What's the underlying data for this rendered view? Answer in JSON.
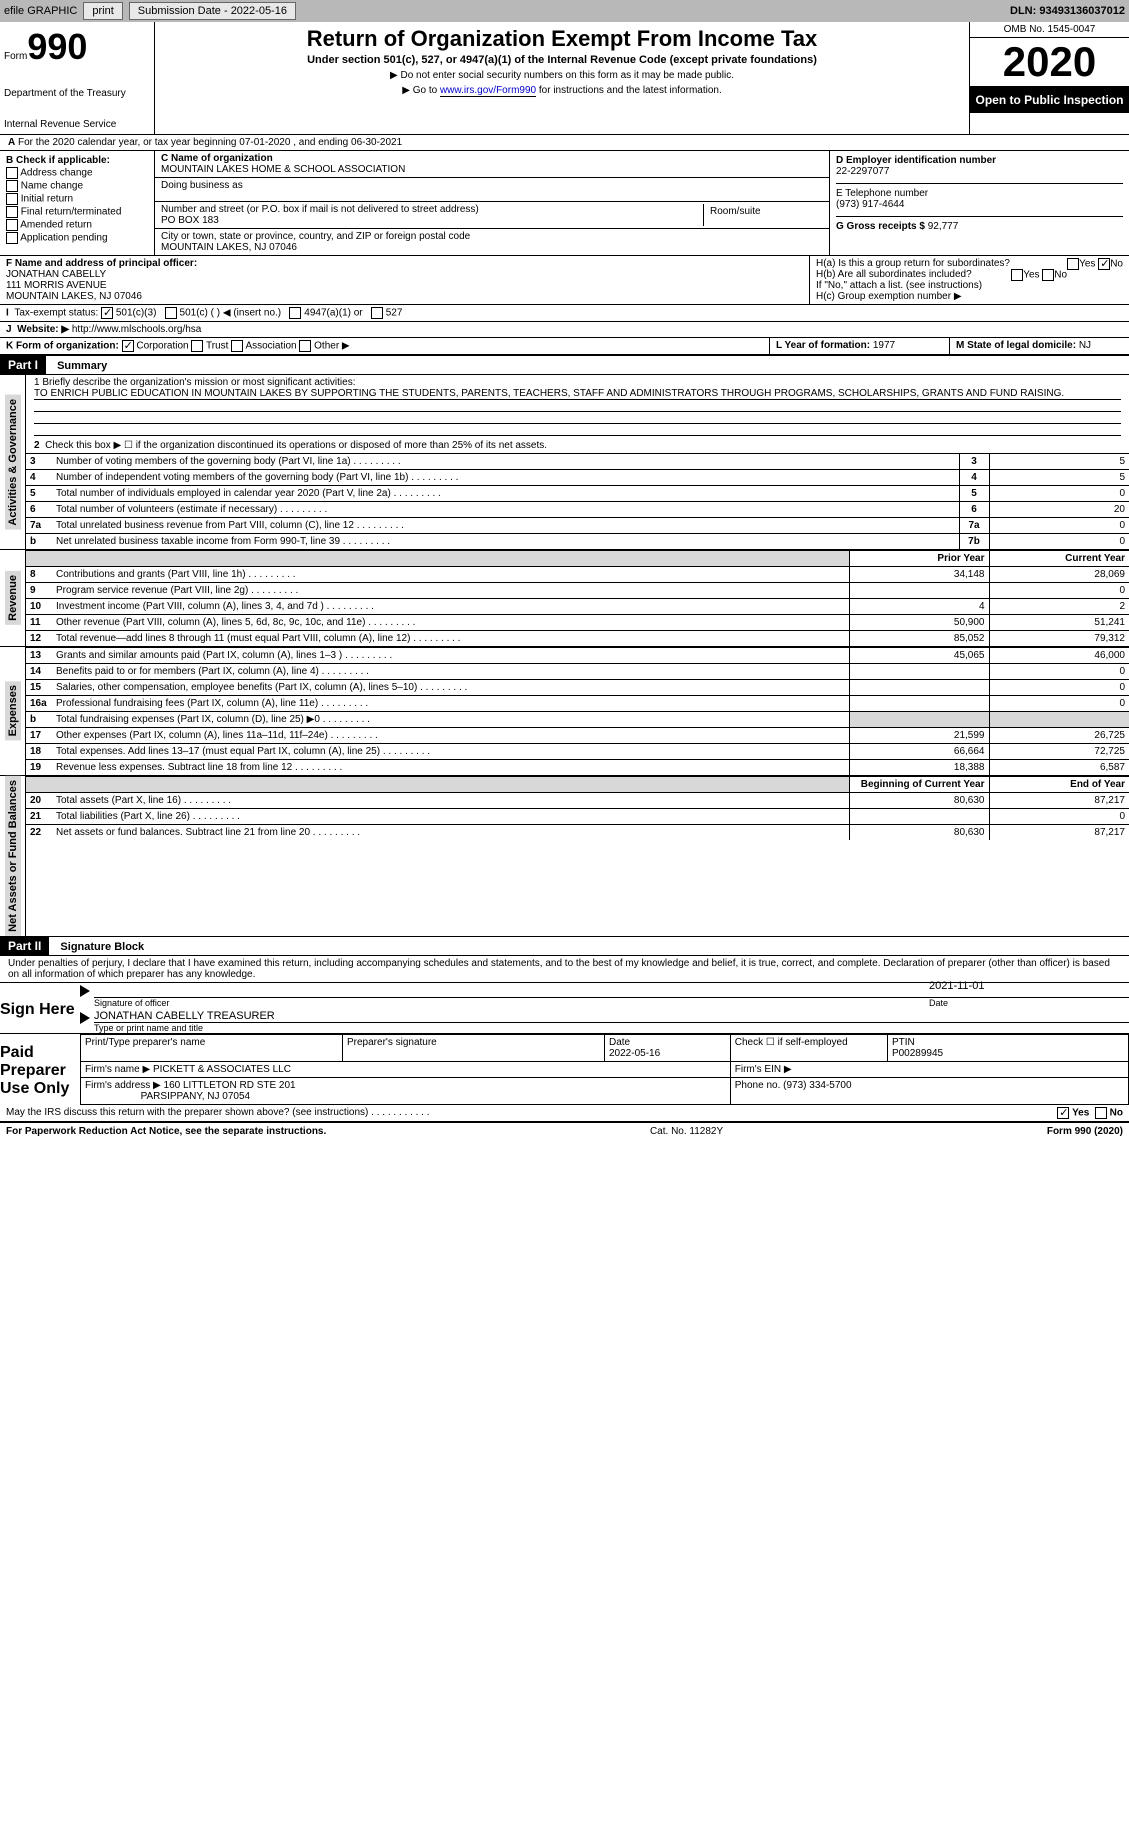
{
  "topbar": {
    "efile_label": "efile GRAPHIC",
    "print_btn": "print",
    "sub_date_label": "Submission Date - 2022-05-16",
    "dln_label": "DLN: 93493136037012"
  },
  "header": {
    "form_word": "Form",
    "form_num": "990",
    "dept1": "Department of the Treasury",
    "dept2": "Internal Revenue Service",
    "title": "Return of Organization Exempt From Income Tax",
    "subtitle": "Under section 501(c), 527, or 4947(a)(1) of the Internal Revenue Code (except private foundations)",
    "instr1": "▶ Do not enter social security numbers on this form as it may be made public.",
    "instr2_pre": "▶ Go to ",
    "instr2_link": "www.irs.gov/Form990",
    "instr2_post": " for instructions and the latest information.",
    "omb": "OMB No. 1545-0047",
    "year": "2020",
    "open_pub": "Open to Public Inspection"
  },
  "lineA": "For the 2020 calendar year, or tax year beginning 07-01-2020    , and ending 06-30-2021",
  "boxB": {
    "title": "B Check if applicable:",
    "addr": "Address change",
    "name": "Name change",
    "init": "Initial return",
    "final": "Final return/terminated",
    "amend": "Amended return",
    "app": "Application pending"
  },
  "boxC": {
    "label_name": "C Name of organization",
    "org_name": "MOUNTAIN LAKES HOME & SCHOOL ASSOCIATION",
    "dba_label": "Doing business as",
    "street_label": "Number and street (or P.O. box if mail is not delivered to street address)",
    "street": "PO BOX 183",
    "room_label": "Room/suite",
    "city_label": "City or town, state or province, country, and ZIP or foreign postal code",
    "city": "MOUNTAIN LAKES, NJ  07046"
  },
  "boxD": {
    "ein_label": "D Employer identification number",
    "ein": "22-2297077",
    "phone_label": "E Telephone number",
    "phone": "(973) 917-4644",
    "receipts_label": "G Gross receipts $",
    "receipts": "92,777"
  },
  "boxF": {
    "label": "F  Name and address of principal officer:",
    "name": "JONATHAN CABELLY",
    "addr1": "111 MORRIS AVENUE",
    "addr2": "MOUNTAIN LAKES, NJ  07046"
  },
  "boxH": {
    "ha_label": "H(a)  Is this a group return for subordinates?",
    "hb_label": "H(b)  Are all subordinates included?",
    "h_note": "If \"No,\" attach a list. (see instructions)",
    "hc_label": "H(c)  Group exemption number ▶",
    "yes": "Yes",
    "no": "No"
  },
  "taxExempt": {
    "label": "Tax-exempt status:",
    "c3": "501(c)(3)",
    "c_other": "501(c) (  ) ◀ (insert no.)",
    "a1": "4947(a)(1) or",
    "s527": "527"
  },
  "lineJ": {
    "label": "Website: ▶",
    "url": "http://www.mlschools.org/hsa"
  },
  "lineK": {
    "label": "K Form of organization:",
    "corp": "Corporation",
    "trust": "Trust",
    "assoc": "Association",
    "other": "Other ▶"
  },
  "lineLM": {
    "l_label": "L Year of formation:",
    "l_val": "1977",
    "m_label": "M State of legal domicile:",
    "m_val": "NJ"
  },
  "part1": {
    "hdr": "Part I",
    "title": "Summary",
    "mission_label": "1  Briefly describe the organization's mission or most significant activities:",
    "mission": "TO ENRICH PUBLIC EDUCATION IN MOUNTAIN LAKES BY SUPPORTING THE STUDENTS, PARENTS, TEACHERS, STAFF AND ADMINISTRATORS THROUGH PROGRAMS, SCHOLARSHIPS, GRANTS AND FUND RAISING.",
    "line2": "Check this box ▶ ☐ if the organization discontinued its operations or disposed of more than 25% of its net assets.",
    "vtab_gov": "Activities & Governance",
    "vtab_rev": "Revenue",
    "vtab_exp": "Expenses",
    "vtab_net": "Net Assets or Fund Balances",
    "hdr_prior": "Prior Year",
    "hdr_curr": "Current Year",
    "hdr_beg": "Beginning of Current Year",
    "hdr_end": "End of Year"
  },
  "govRows": [
    {
      "n": "3",
      "txt": "Number of voting members of the governing body (Part VI, line 1a)",
      "idx": "3",
      "v": "5"
    },
    {
      "n": "4",
      "txt": "Number of independent voting members of the governing body (Part VI, line 1b)",
      "idx": "4",
      "v": "5"
    },
    {
      "n": "5",
      "txt": "Total number of individuals employed in calendar year 2020 (Part V, line 2a)",
      "idx": "5",
      "v": "0"
    },
    {
      "n": "6",
      "txt": "Total number of volunteers (estimate if necessary)",
      "idx": "6",
      "v": "20"
    },
    {
      "n": "7a",
      "txt": "Total unrelated business revenue from Part VIII, column (C), line 12",
      "idx": "7a",
      "v": "0"
    },
    {
      "n": "b",
      "txt": "Net unrelated business taxable income from Form 990-T, line 39",
      "idx": "7b",
      "v": "0"
    }
  ],
  "revRows": [
    {
      "n": "8",
      "txt": "Contributions and grants (Part VIII, line 1h)",
      "p": "34,148",
      "c": "28,069"
    },
    {
      "n": "9",
      "txt": "Program service revenue (Part VIII, line 2g)",
      "p": "",
      "c": "0"
    },
    {
      "n": "10",
      "txt": "Investment income (Part VIII, column (A), lines 3, 4, and 7d )",
      "p": "4",
      "c": "2"
    },
    {
      "n": "11",
      "txt": "Other revenue (Part VIII, column (A), lines 5, 6d, 8c, 9c, 10c, and 11e)",
      "p": "50,900",
      "c": "51,241"
    },
    {
      "n": "12",
      "txt": "Total revenue—add lines 8 through 11 (must equal Part VIII, column (A), line 12)",
      "p": "85,052",
      "c": "79,312"
    }
  ],
  "expRows": [
    {
      "n": "13",
      "txt": "Grants and similar amounts paid (Part IX, column (A), lines 1–3 )",
      "p": "45,065",
      "c": "46,000"
    },
    {
      "n": "14",
      "txt": "Benefits paid to or for members (Part IX, column (A), line 4)",
      "p": "",
      "c": "0"
    },
    {
      "n": "15",
      "txt": "Salaries, other compensation, employee benefits (Part IX, column (A), lines 5–10)",
      "p": "",
      "c": "0"
    },
    {
      "n": "16a",
      "txt": "Professional fundraising fees (Part IX, column (A), line 11e)",
      "p": "",
      "c": "0"
    },
    {
      "n": "b",
      "txt": "Total fundraising expenses (Part IX, column (D), line 25) ▶0",
      "p": "grey",
      "c": "grey"
    },
    {
      "n": "17",
      "txt": "Other expenses (Part IX, column (A), lines 11a–11d, 11f–24e)",
      "p": "21,599",
      "c": "26,725"
    },
    {
      "n": "18",
      "txt": "Total expenses. Add lines 13–17 (must equal Part IX, column (A), line 25)",
      "p": "66,664",
      "c": "72,725"
    },
    {
      "n": "19",
      "txt": "Revenue less expenses. Subtract line 18 from line 12",
      "p": "18,388",
      "c": "6,587"
    }
  ],
  "netRows": [
    {
      "n": "20",
      "txt": "Total assets (Part X, line 16)",
      "p": "80,630",
      "c": "87,217"
    },
    {
      "n": "21",
      "txt": "Total liabilities (Part X, line 26)",
      "p": "",
      "c": "0"
    },
    {
      "n": "22",
      "txt": "Net assets or fund balances. Subtract line 21 from line 20",
      "p": "80,630",
      "c": "87,217"
    }
  ],
  "part2": {
    "hdr": "Part II",
    "title": "Signature Block",
    "decl": "Under penalties of perjury, I declare that I have examined this return, including accompanying schedules and statements, and to the best of my knowledge and belief, it is true, correct, and complete. Declaration of preparer (other than officer) is based on all information of which preparer has any knowledge.",
    "sign_here": "Sign Here",
    "sig_officer": "Signature of officer",
    "sig_date": "2021-11-01",
    "date_lbl": "Date",
    "officer_name": "JONATHAN CABELLY TREASURER",
    "type_name": "Type or print name and title",
    "paid_prep": "Paid Preparer Use Only",
    "prep_name_lbl": "Print/Type preparer's name",
    "prep_sig_lbl": "Preparer's signature",
    "prep_date_lbl": "Date",
    "prep_date": "2022-05-16",
    "self_emp": "Check ☐ if self-employed",
    "ptin_lbl": "PTIN",
    "ptin": "P00289945",
    "firm_name_lbl": "Firm's name   ▶",
    "firm_name": "PICKETT & ASSOCIATES LLC",
    "firm_ein_lbl": "Firm's EIN ▶",
    "firm_addr_lbl": "Firm's address ▶",
    "firm_addr1": "160 LITTLETON RD STE 201",
    "firm_addr2": "PARSIPPANY, NJ  07054",
    "firm_phone_lbl": "Phone no.",
    "firm_phone": "(973) 334-5700",
    "discuss": "May the IRS discuss this return with the preparer shown above? (see instructions)"
  },
  "footer": {
    "paperwork": "For Paperwork Reduction Act Notice, see the separate instructions.",
    "cat": "Cat. No. 11282Y",
    "form": "Form 990 (2020)"
  },
  "colors": {
    "topbar_bg": "#b8b8b8",
    "link": "#0000cc",
    "grey_cell": "#d8d8d8"
  }
}
